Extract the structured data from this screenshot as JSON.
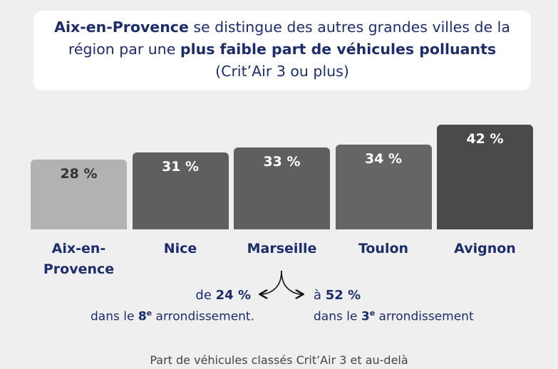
{
  "chart_data": {
    "type": "bar",
    "title": [
      [
        {
          "text": "Aix-en-Provence",
          "bold": true
        },
        {
          "text": " se distingue des autres grandes villes de la",
          "bold": false
        }
      ],
      [
        {
          "text": "région par une ",
          "bold": false
        },
        {
          "text": "plus faible part de véhicules polluants",
          "bold": true
        }
      ],
      [
        {
          "text": "(Crit’Air 3 ou plus)",
          "bold": false
        }
      ]
    ],
    "categories": [
      "Aix-en-Provence",
      "Nice",
      "Marseille",
      "Toulon",
      "Avignon"
    ],
    "values": [
      28,
      31,
      33,
      34,
      42
    ],
    "value_labels": [
      "28 %",
      "31 %",
      "33 %",
      "34 %",
      "42 %"
    ],
    "colors": [
      "#b2b2b2",
      "#5f5f5f",
      "#5f5f5f",
      "#656565",
      "#4a4a4a"
    ],
    "label_colors": [
      "#333333",
      "#ffffff",
      "#ffffff",
      "#ffffff",
      "#ffffff"
    ],
    "annotation": {
      "values": [
        24,
        52
      ],
      "value_labels": [
        "24 %",
        "52 %"
      ],
      "prefixes": [
        "de",
        "à"
      ],
      "notes": [
        {
          "pre": "dans le ",
          "num": "8",
          "sup": "e",
          "post": " arrondissement."
        },
        {
          "pre": "dans le ",
          "num": "3",
          "sup": "e",
          "post": " arrondissement"
        }
      ]
    },
    "source": "Part de véhicules classés Crit’Air 3 et au-delà"
  }
}
